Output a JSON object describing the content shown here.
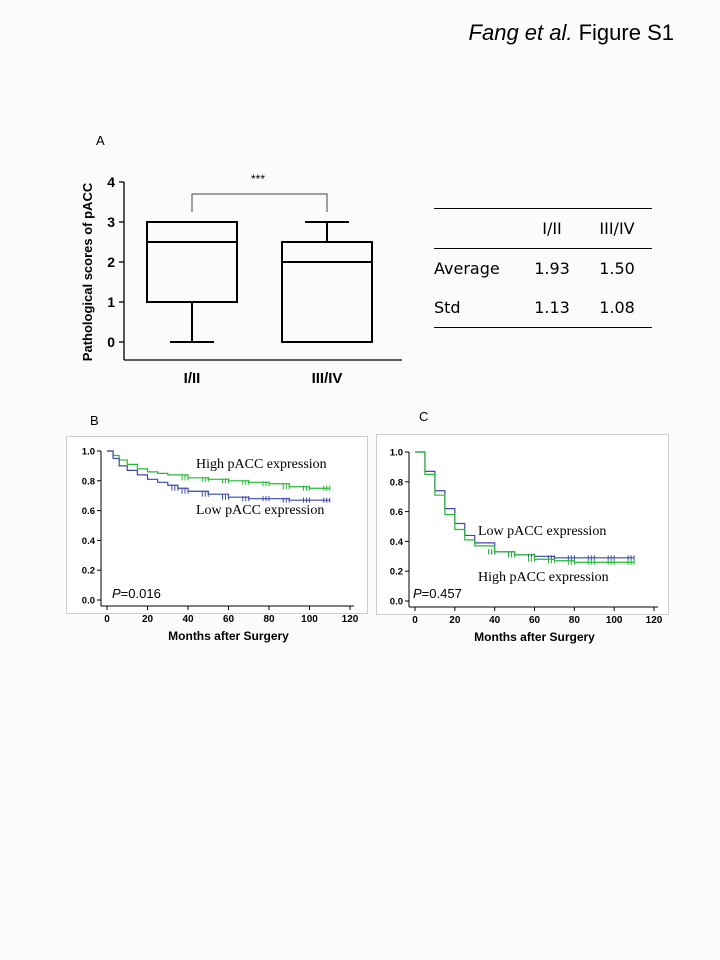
{
  "header": {
    "authors": "Fang et al.",
    "figure": "Figure S1"
  },
  "panel_labels": {
    "a": "A",
    "b": "B",
    "c": "C"
  },
  "boxplot": {
    "ylabel": "Pathological scores of pACC",
    "yticks": [
      "0",
      "1",
      "2",
      "3",
      "4"
    ],
    "significance": "***",
    "groups": [
      {
        "name": "I/II",
        "min": 0,
        "q1": 1,
        "median": 2.5,
        "q3": 3,
        "max": 3
      },
      {
        "name": "III/IV",
        "min": 0,
        "q1": 0,
        "median": 2,
        "q3": 2.5,
        "max": 3
      }
    ]
  },
  "stats_table": {
    "columns": [
      "",
      "I/II",
      "III/IV"
    ],
    "rows": [
      {
        "label": "Average",
        "v1": "1.93",
        "v2": "1.50"
      },
      {
        "label": "Std",
        "v1": "1.13",
        "v2": "1.08"
      }
    ]
  },
  "chart_data": [
    {
      "type": "line",
      "title": "B",
      "xlabel": "Months after Surgery",
      "ylabel": "",
      "xlim": [
        0,
        120
      ],
      "ylim": [
        0,
        1
      ],
      "xticks": [
        "0",
        "20",
        "40",
        "60",
        "80",
        "100",
        "120"
      ],
      "yticks": [
        "0.0",
        "0.2",
        "0.4",
        "0.6",
        "0.8",
        "1.0"
      ],
      "series": [
        {
          "name": "High pACC  expression",
          "color": "#22bb33",
          "x": [
            0,
            3,
            6,
            10,
            15,
            20,
            25,
            30,
            40,
            50,
            60,
            70,
            80,
            90,
            100,
            110
          ],
          "y": [
            1.0,
            0.97,
            0.94,
            0.91,
            0.88,
            0.86,
            0.85,
            0.84,
            0.82,
            0.81,
            0.8,
            0.79,
            0.78,
            0.76,
            0.75,
            0.75
          ]
        },
        {
          "name": "Low pACC expression",
          "color": "#3b48b0",
          "x": [
            0,
            3,
            6,
            10,
            15,
            20,
            25,
            30,
            35,
            40,
            50,
            60,
            70,
            80,
            90,
            100,
            110
          ],
          "y": [
            1.0,
            0.95,
            0.9,
            0.87,
            0.84,
            0.81,
            0.79,
            0.77,
            0.75,
            0.73,
            0.71,
            0.69,
            0.68,
            0.68,
            0.67,
            0.67,
            0.67
          ]
        }
      ],
      "annotation": {
        "prefix": "P",
        "value": "=0.016"
      }
    },
    {
      "type": "line",
      "title": "C",
      "xlabel": "Months after Surgery",
      "ylabel": "",
      "xlim": [
        0,
        120
      ],
      "ylim": [
        0,
        1
      ],
      "xticks": [
        "0",
        "20",
        "40",
        "60",
        "80",
        "100",
        "120"
      ],
      "yticks": [
        "0.0",
        "0.2",
        "0.4",
        "0.6",
        "0.8",
        "1.0"
      ],
      "series": [
        {
          "name": "Low pACC expression",
          "color": "#3b48b0",
          "x": [
            0,
            5,
            10,
            15,
            20,
            25,
            30,
            40,
            50,
            60,
            70,
            80,
            90,
            100,
            110
          ],
          "y": [
            1.0,
            0.87,
            0.74,
            0.62,
            0.52,
            0.44,
            0.39,
            0.33,
            0.31,
            0.3,
            0.29,
            0.29,
            0.29,
            0.29,
            0.29
          ]
        },
        {
          "name": "High pACC  expression",
          "color": "#22bb33",
          "x": [
            0,
            5,
            10,
            15,
            20,
            25,
            30,
            40,
            50,
            60,
            70,
            80,
            90,
            100,
            110
          ],
          "y": [
            1.0,
            0.85,
            0.71,
            0.58,
            0.48,
            0.41,
            0.37,
            0.33,
            0.31,
            0.28,
            0.27,
            0.26,
            0.26,
            0.26,
            0.26
          ]
        }
      ],
      "annotation": {
        "prefix": "P",
        "value": "=0.457"
      }
    }
  ]
}
